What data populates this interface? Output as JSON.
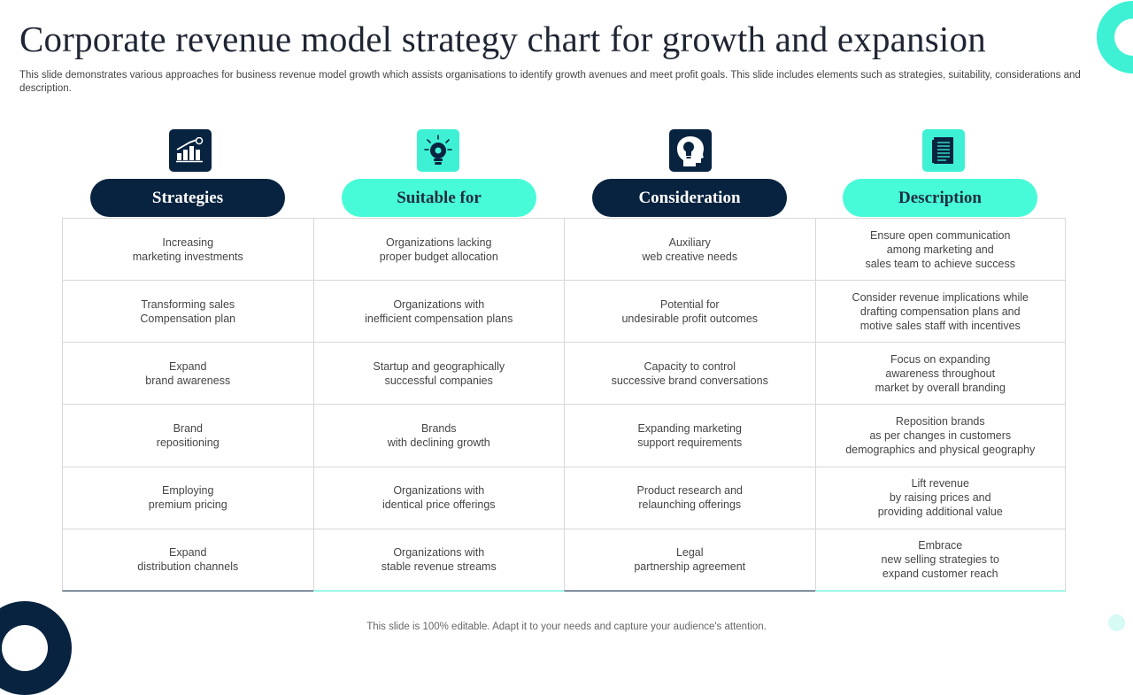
{
  "title": "Corporate revenue model strategy chart for growth and expansion",
  "subtitle": "This slide demonstrates various approaches for business revenue model growth which assists organisations to identify growth avenues and meet profit goals. This slide includes elements such as strategies, suitability, considerations and description.",
  "columns": [
    {
      "label": "Strategies",
      "icon": "growth-chart-icon",
      "style": "dark"
    },
    {
      "label": "Suitable for",
      "icon": "lightbulb-gear-icon",
      "style": "teal"
    },
    {
      "label": "Consideration",
      "icon": "head-lightbulb-icon",
      "style": "dark"
    },
    {
      "label": "Description",
      "icon": "document-icon",
      "style": "teal"
    }
  ],
  "rows": [
    [
      "Increasing\nmarketing investments",
      "Organizations lacking\nproper budget allocation",
      "Auxiliary\nweb creative needs",
      "Ensure open communication\namong marketing and\nsales team to achieve  success"
    ],
    [
      "Transforming  sales\nCompensation  plan",
      "Organizations with\ninefficient  compensation plans",
      "Potential for\nundesirable  profit outcomes",
      "Consider revenue  implications while\ndrafting compensation plans and\nmotive  sales staff with incentives"
    ],
    [
      "Expand\nbrand awareness",
      "Startup and geographically\nsuccessful companies",
      "Capacity to control\nsuccessive brand conversations",
      "Focus on expanding\nawareness throughout\nmarket by overall  branding"
    ],
    [
      "Brand\nrepositioning",
      "Brands\nwith declining growth",
      "Expanding marketing\nsupport requirements",
      "Reposition brands\nas per changes in customers\ndemographics  and physical geography"
    ],
    [
      "Employing\npremium pricing",
      "Organizations with\nidentical price offerings",
      "Product research  and\nrelaunching offerings",
      "Lift revenue\nby raising prices and\nproviding  additional value"
    ],
    [
      "Expand\ndistribution channels",
      "Organizations with\nstable revenue  streams",
      "Legal\npartnership agreement",
      "Embrace\nnew selling strategies to\nexpand customer reach"
    ]
  ],
  "footer": "This slide is 100% editable. Adapt it to your needs and capture your audience's attention.",
  "colors": {
    "navy": "#07233f",
    "teal": "#3ef1d4",
    "pill_teal": "#47fbd9"
  }
}
